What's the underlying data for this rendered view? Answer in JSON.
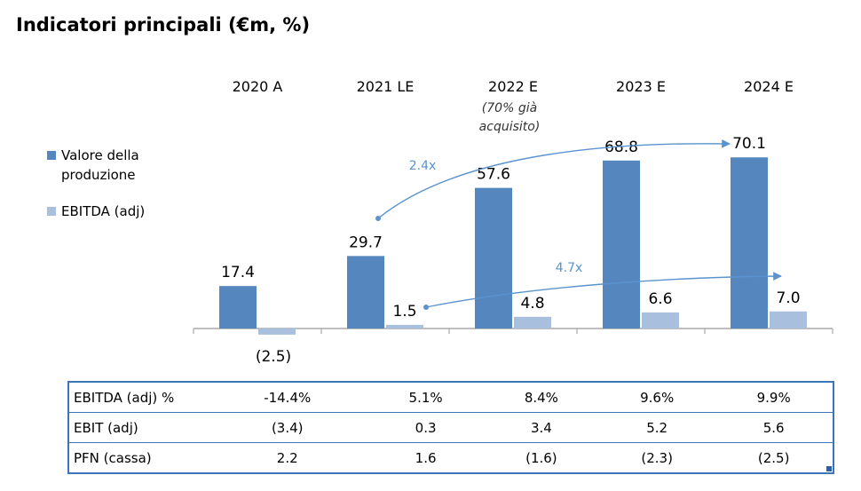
{
  "title": "Indicatori principali (€m, %)",
  "colors": {
    "vdp": "#5587be",
    "ebitda": "#a8bfde",
    "arrow": "#5a93cf",
    "table_border": "#3b74b8"
  },
  "legend": [
    {
      "lines": [
        "Valore della",
        "produzione"
      ],
      "color": "#5587be"
    },
    {
      "lines": [
        "EBITDA (adj)"
      ],
      "color": "#a8bfde"
    }
  ],
  "chart_data": {
    "type": "bar",
    "categories": [
      "2020 A",
      "2021 LE",
      "2022 E",
      "2023 E",
      "2024 E"
    ],
    "category_notes": [
      "",
      "",
      "(70% già acquisito)",
      "",
      ""
    ],
    "series": [
      {
        "name": "Valore della produzione",
        "values": [
          17.4,
          29.7,
          57.6,
          68.8,
          70.1
        ],
        "labels": [
          "17.4",
          "29.7",
          "57.6",
          "68.8",
          "70.1"
        ]
      },
      {
        "name": "EBITDA (adj)",
        "values": [
          -2.5,
          1.5,
          4.8,
          6.6,
          7.0
        ],
        "labels": [
          "(2.5)",
          "1.5",
          "4.8",
          "6.6",
          "7.0"
        ]
      }
    ],
    "annotations": [
      {
        "text": "2.4x",
        "from": "29.7",
        "to": "70.1"
      },
      {
        "text": "4.7x",
        "from": "1.5",
        "to": "7.0"
      }
    ],
    "grid": false
  },
  "table": {
    "rows": [
      {
        "label": "EBITDA (adj) %",
        "values": [
          "-14.4%",
          "5.1%",
          "8.4%",
          "9.6%",
          "9.9%"
        ]
      },
      {
        "label": "EBIT (adj)",
        "values": [
          "(3.4)",
          "0.3",
          "3.4",
          "5.2",
          "5.6"
        ]
      },
      {
        "label": "PFN (cassa)",
        "values": [
          "2.2",
          "1.6",
          "(1.6)",
          "(2.3)",
          "(2.5)"
        ]
      }
    ]
  }
}
